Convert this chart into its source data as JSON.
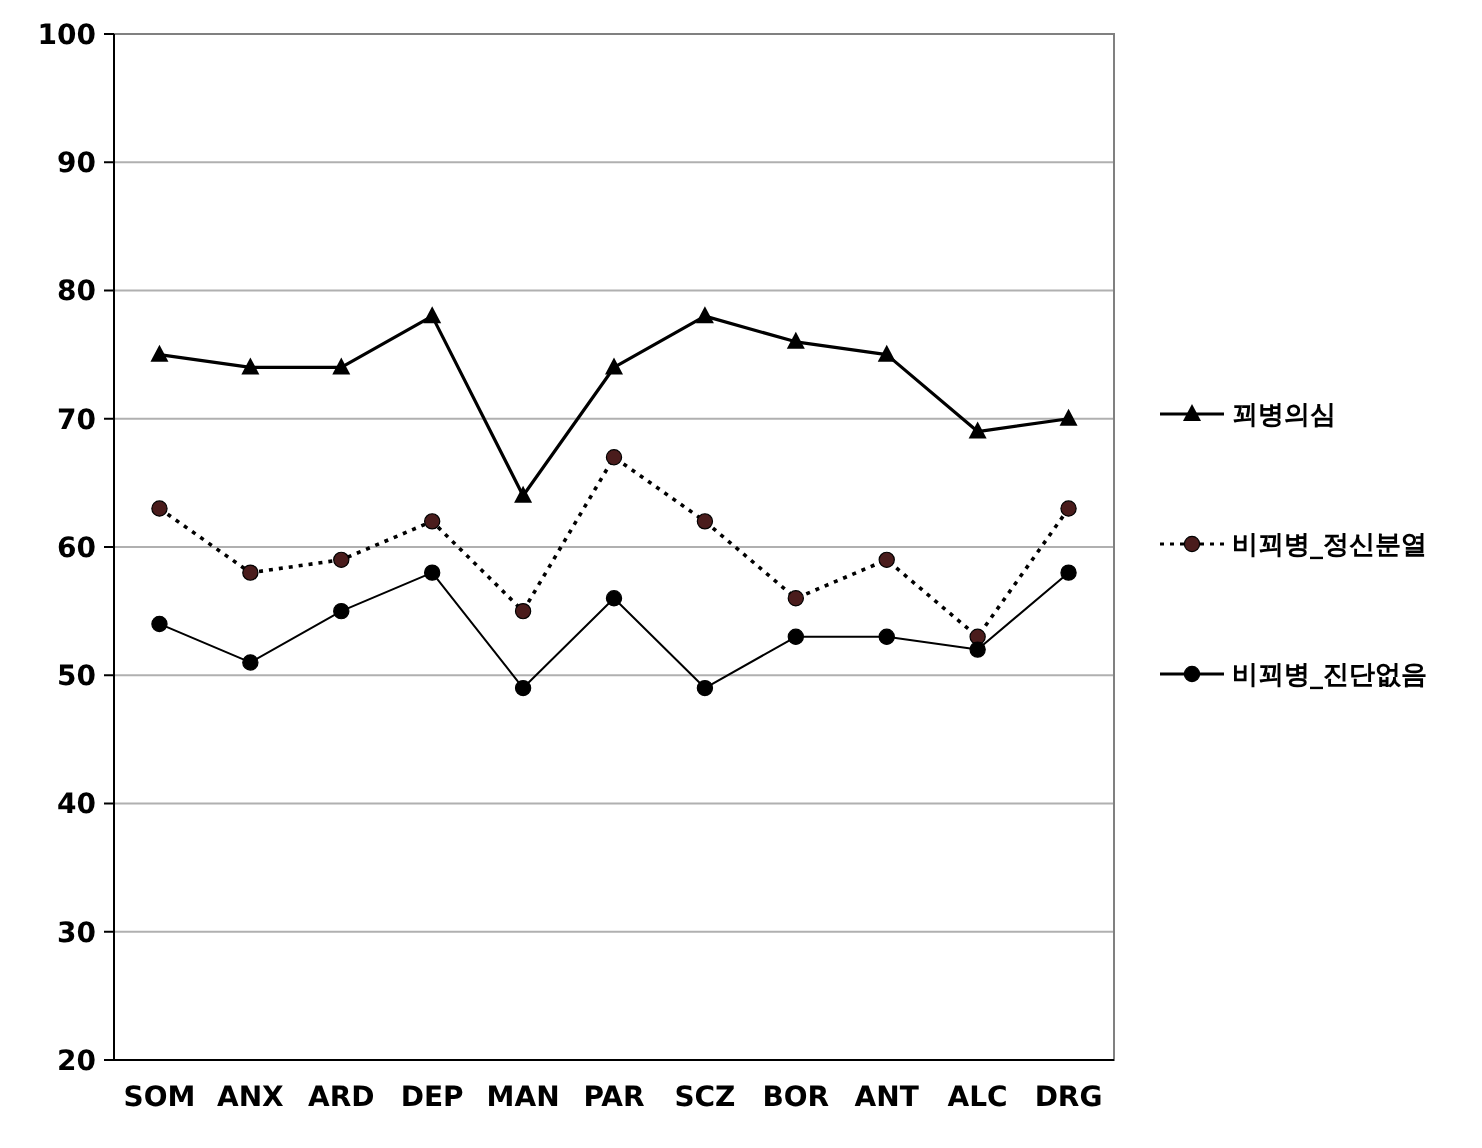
{
  "chart_data": {
    "type": "line",
    "categories": [
      "SOM",
      "ANX",
      "ARD",
      "DEP",
      "MAN",
      "PAR",
      "SCZ",
      "BOR",
      "ANT",
      "ALC",
      "DRG"
    ],
    "series": [
      {
        "name": "꾀병의심",
        "color": "#000000",
        "marker": "triangle",
        "line_style": "solid",
        "values": [
          75,
          74,
          74,
          78,
          64,
          74,
          78,
          76,
          75,
          69,
          70
        ]
      },
      {
        "name": "비꾀병_정신분열",
        "color": "#4a1c1c",
        "marker": "circle",
        "line_style": "dotted",
        "values": [
          63,
          58,
          59,
          62,
          55,
          67,
          62,
          56,
          59,
          53,
          63
        ]
      },
      {
        "name": "비꾀병_진단없음",
        "color": "#000000",
        "marker": "circle",
        "line_style": "solid",
        "values": [
          54,
          51,
          55,
          58,
          49,
          56,
          49,
          53,
          53,
          52,
          58
        ]
      }
    ],
    "ylim": [
      20,
      100
    ],
    "yticks": [
      20,
      30,
      40,
      50,
      60,
      70,
      80,
      90,
      100
    ],
    "grid": "y",
    "legend": "right"
  }
}
